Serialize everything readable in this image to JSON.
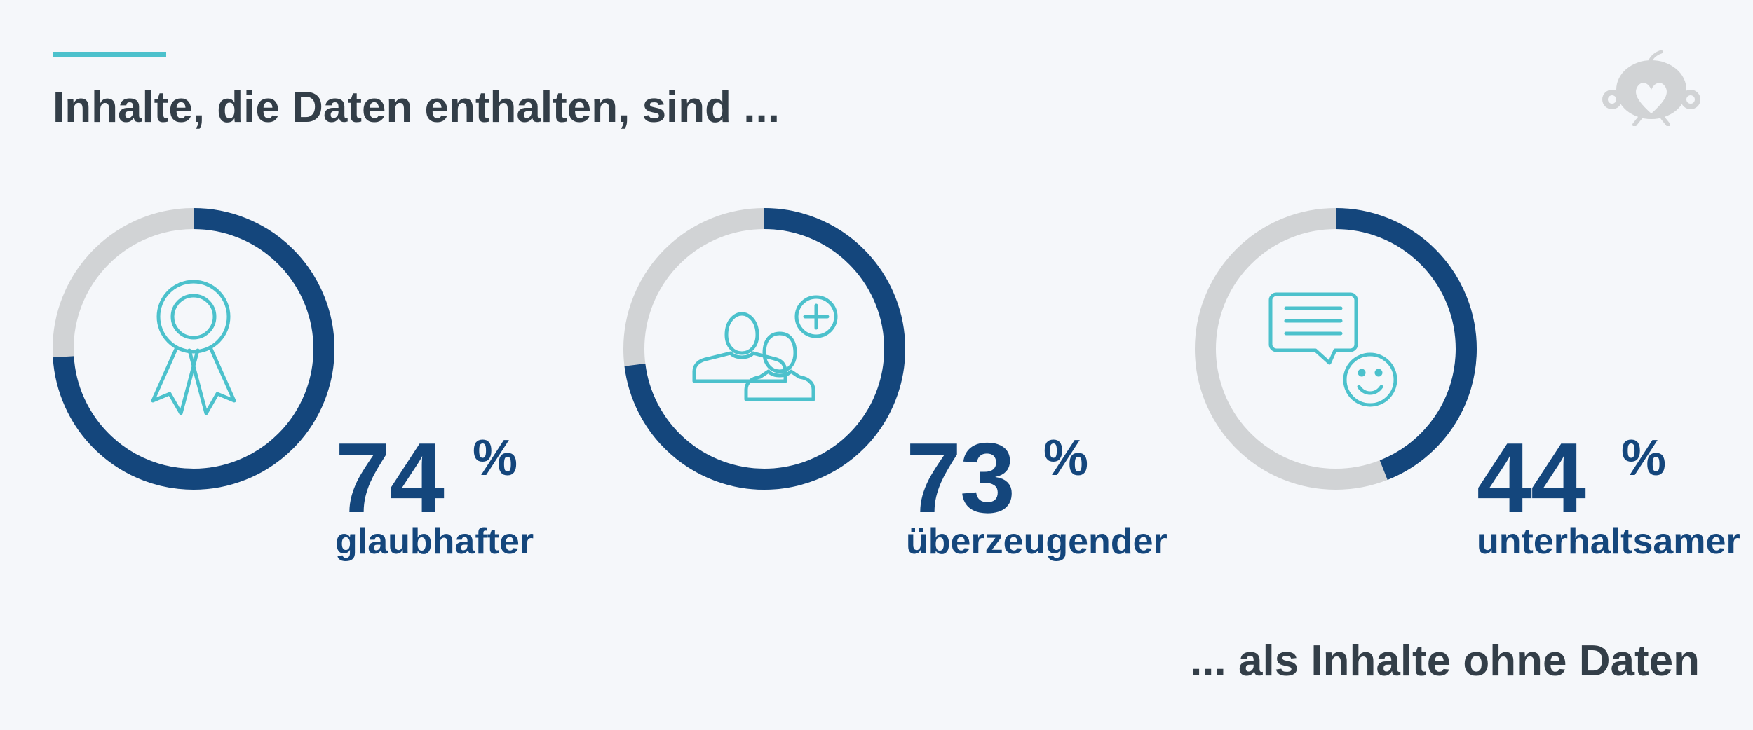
{
  "header": {
    "title": "Inhalte, die Daten enthalten, sind ..."
  },
  "footer": {
    "text": "... als Inhalte ohne Daten"
  },
  "colors": {
    "accent": "#4cc1cc",
    "filled": "#14467c",
    "track": "#d1d3d5",
    "text": "#333e48",
    "logo": "#d1d3d5"
  },
  "icons": [
    "award-ribbon-icon",
    "users-add-icon",
    "chat-smile-icon",
    "logo-icon"
  ],
  "chart_data": {
    "type": "pie",
    "title": "Inhalte, die Daten enthalten, sind ...",
    "categories": [
      "glaubhafter",
      "überzeugender",
      "unterhaltsamer"
    ],
    "values": [
      74,
      73,
      44
    ],
    "unit": "%",
    "items": [
      {
        "value": "74",
        "unit": "%",
        "label": "glaubhafter",
        "icon": "award-ribbon-icon"
      },
      {
        "value": "73",
        "unit": "%",
        "label": "überzeugender",
        "icon": "users-add-icon"
      },
      {
        "value": "44",
        "unit": "%",
        "label": "unterhaltsamer",
        "icon": "chat-smile-icon"
      }
    ]
  }
}
